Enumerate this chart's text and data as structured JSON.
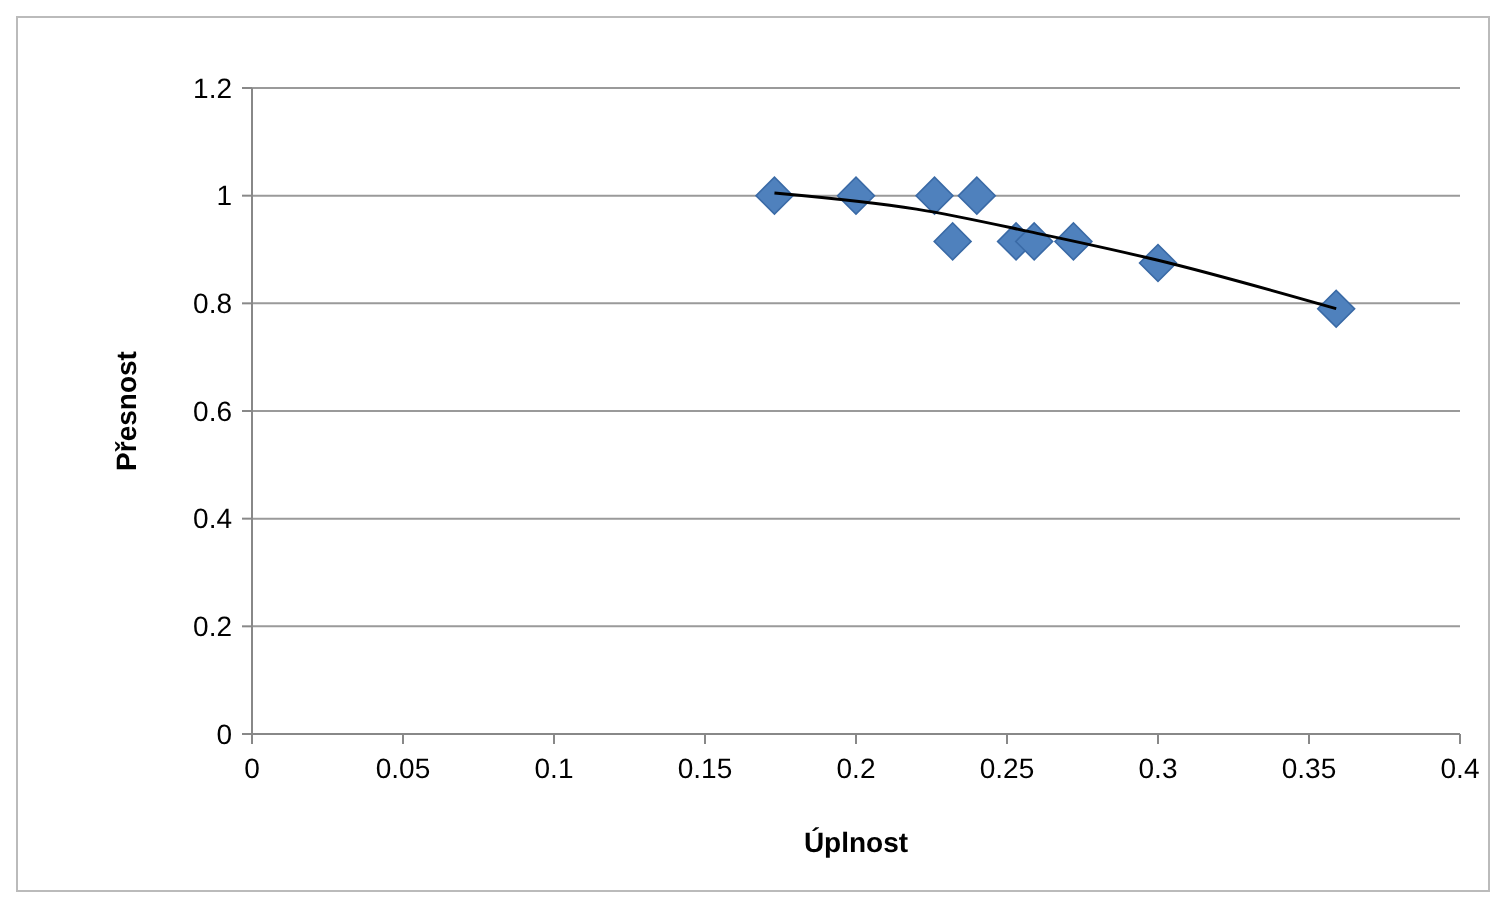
{
  "chart_data": {
    "type": "scatter",
    "xlabel": "Úplnost",
    "ylabel": "Přesnost",
    "xlim": [
      0,
      0.4
    ],
    "ylim": [
      0,
      1.2
    ],
    "xticks": [
      0,
      0.05,
      0.1,
      0.15,
      0.2,
      0.25,
      0.3,
      0.35,
      0.4
    ],
    "yticks": [
      0,
      0.2,
      0.4,
      0.6,
      0.8,
      1,
      1.2
    ],
    "grid": "y",
    "series": [
      {
        "color": "#4f81bd",
        "marker": "diamond",
        "x": [
          0.173,
          0.2,
          0.226,
          0.24,
          0.232,
          0.253,
          0.259,
          0.272,
          0.3,
          0.359
        ],
        "values": [
          1,
          1,
          1,
          1,
          0.915,
          0.915,
          0.915,
          0.915,
          0.875,
          0.79
        ]
      },
      {
        "type": "line",
        "color": "#000000",
        "line_style": "solid",
        "x": [
          0.173,
          0.22,
          0.26,
          0.3,
          0.359
        ],
        "values": [
          1.005,
          0.975,
          0.93,
          0.88,
          0.79
        ]
      }
    ]
  }
}
